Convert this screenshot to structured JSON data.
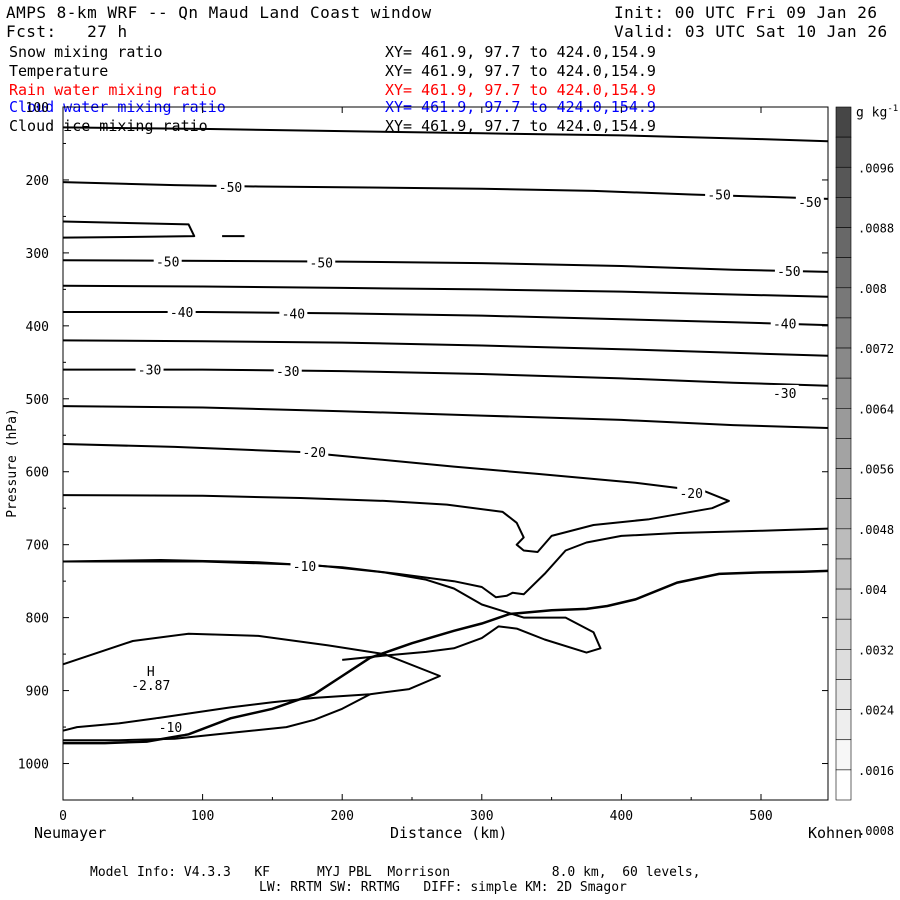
{
  "header": {
    "title": "AMPS 8-km WRF -- Qn Maud Land Coast window",
    "init": "Init: 00 UTC Fri 09 Jan 26",
    "fcst": "Fcst:   27 h",
    "valid": "Valid: 03 UTC Sat 10 Jan 26"
  },
  "legend": [
    {
      "name": "Snow mixing ratio",
      "xy": "XY= 461.9, 97.7 to 424.0,154.9",
      "color": "#000000"
    },
    {
      "name": "Temperature",
      "xy": "XY= 461.9, 97.7 to 424.0,154.9",
      "color": "#000000"
    },
    {
      "name": "Rain water mixing ratio",
      "xy": "XY= 461.9, 97.7 to 424.0,154.9",
      "color": "#ff0000"
    },
    {
      "name": "Cloud water mixing ratio",
      "xy": "XY= 461.9, 97.7 to 424.0,154.9",
      "color": "#0000ff"
    },
    {
      "name": "Cloud ice mixing ratio",
      "xy": "XY= 461.9, 97.7 to 424.0,154.9",
      "color": "#000000"
    }
  ],
  "footer": {
    "line1": "Model Info: V4.3.3   KF      MYJ PBL  Morrison             8.0 km,  60 levels,",
    "line2": "LW: RRTM SW: RRTMG   DIFF: simple KM: 2D Smagor"
  },
  "chart_data": {
    "type": "contour",
    "title": "AMPS 8-km WRF -- Qn Maud Land Coast window",
    "xlabel": "Distance (km)",
    "ylabel": "Pressure (hPa)",
    "xlim": [
      0,
      548
    ],
    "ylim": [
      1050,
      100
    ],
    "x_ticks": [
      0,
      100,
      200,
      300,
      400,
      500
    ],
    "y_ticks": [
      100,
      200,
      300,
      400,
      500,
      600,
      700,
      800,
      900,
      1000
    ],
    "x_endpoints": {
      "left": "Neumayer",
      "right": "Kohnen"
    },
    "colorbar": {
      "unit_base": "g kg",
      "unit_exp": "-1",
      "ticks": [
        ".0096",
        ".0088",
        ".008",
        ".0072",
        ".0064",
        ".0056",
        ".0048",
        ".004",
        ".0032",
        ".0024",
        ".0016",
        ".0008"
      ],
      "levels": 23
    },
    "temperature_contours": [
      {
        "points": [
          [
            0,
            128
          ],
          [
            100,
            130
          ],
          [
            200,
            133
          ],
          [
            300,
            136
          ],
          [
            400,
            139
          ],
          [
            500,
            144
          ],
          [
            548,
            147
          ]
        ]
      },
      {
        "points": [
          [
            0,
            203
          ],
          [
            80,
            207
          ],
          [
            140,
            209
          ],
          [
            200,
            210
          ],
          [
            300,
            212
          ],
          [
            380,
            215
          ],
          [
            450,
            220
          ],
          [
            520,
            224
          ],
          [
            548,
            226
          ]
        ]
      },
      {
        "points": [
          [
            0,
            257
          ],
          [
            90,
            261
          ],
          [
            94,
            277
          ],
          [
            60,
            278
          ],
          [
            0,
            279
          ]
        ]
      },
      {
        "points": [
          [
            114,
            277
          ],
          [
            130,
            277
          ]
        ]
      },
      {
        "points": [
          [
            0,
            310
          ],
          [
            100,
            311
          ],
          [
            200,
            312
          ],
          [
            300,
            314
          ],
          [
            400,
            318
          ],
          [
            480,
            323
          ],
          [
            548,
            326
          ]
        ]
      },
      {
        "points": [
          [
            0,
            345
          ],
          [
            100,
            346
          ],
          [
            200,
            348
          ],
          [
            300,
            350
          ],
          [
            400,
            353
          ],
          [
            480,
            357
          ],
          [
            548,
            360
          ]
        ]
      },
      {
        "points": [
          [
            0,
            381
          ],
          [
            100,
            381
          ],
          [
            200,
            383
          ],
          [
            300,
            386
          ],
          [
            400,
            391
          ],
          [
            480,
            395
          ],
          [
            548,
            399
          ]
        ]
      },
      {
        "points": [
          [
            0,
            420
          ],
          [
            100,
            421
          ],
          [
            200,
            423
          ],
          [
            300,
            427
          ],
          [
            400,
            432
          ],
          [
            480,
            437
          ],
          [
            548,
            441
          ]
        ]
      },
      {
        "points": [
          [
            0,
            460
          ],
          [
            100,
            460
          ],
          [
            200,
            462
          ],
          [
            300,
            466
          ],
          [
            400,
            472
          ],
          [
            480,
            478
          ],
          [
            548,
            482
          ]
        ]
      },
      {
        "points": [
          [
            0,
            510
          ],
          [
            100,
            512
          ],
          [
            200,
            517
          ],
          [
            300,
            523
          ],
          [
            400,
            529
          ],
          [
            480,
            536
          ],
          [
            548,
            540
          ]
        ]
      },
      {
        "points": [
          [
            0,
            562
          ],
          [
            80,
            566
          ],
          [
            170,
            573
          ],
          [
            220,
            582
          ],
          [
            280,
            593
          ],
          [
            340,
            603
          ],
          [
            410,
            615
          ],
          [
            460,
            627
          ],
          [
            477,
            640
          ],
          [
            465,
            650
          ],
          [
            420,
            665
          ],
          [
            380,
            673
          ],
          [
            350,
            688
          ],
          [
            340,
            710
          ],
          [
            330,
            708
          ],
          [
            325,
            700
          ],
          [
            330,
            690
          ],
          [
            325,
            670
          ],
          [
            315,
            655
          ],
          [
            275,
            645
          ],
          [
            230,
            640
          ],
          [
            170,
            636
          ],
          [
            100,
            633
          ],
          [
            0,
            632
          ]
        ]
      },
      {
        "points": [
          [
            0,
            723
          ],
          [
            70,
            721
          ],
          [
            140,
            724
          ],
          [
            200,
            731
          ],
          [
            240,
            740
          ],
          [
            280,
            750
          ],
          [
            300,
            758
          ],
          [
            310,
            772
          ],
          [
            318,
            770
          ],
          [
            322,
            766
          ],
          [
            330,
            768
          ],
          [
            345,
            740
          ],
          [
            360,
            708
          ],
          [
            375,
            697
          ],
          [
            400,
            688
          ],
          [
            440,
            684
          ],
          [
            500,
            681
          ],
          [
            548,
            678
          ]
        ]
      },
      {
        "points": [
          [
            0,
            723
          ],
          [
            100,
            723
          ],
          [
            180,
            728
          ],
          [
            230,
            738
          ],
          [
            260,
            748
          ],
          [
            280,
            760
          ],
          [
            300,
            782
          ],
          [
            330,
            800
          ],
          [
            360,
            800
          ],
          [
            380,
            820
          ],
          [
            385,
            842
          ],
          [
            375,
            848
          ],
          [
            345,
            830
          ],
          [
            325,
            815
          ],
          [
            312,
            812
          ],
          [
            300,
            828
          ],
          [
            280,
            842
          ],
          [
            260,
            847
          ],
          [
            230,
            852
          ],
          [
            200,
            858
          ]
        ]
      },
      {
        "points": [
          [
            0,
            864
          ],
          [
            50,
            832
          ],
          [
            90,
            822
          ],
          [
            140,
            825
          ],
          [
            190,
            838
          ],
          [
            230,
            850
          ],
          [
            270,
            880
          ],
          [
            248,
            898
          ],
          [
            220,
            905
          ],
          [
            180,
            910
          ],
          [
            150,
            916
          ],
          [
            120,
            923
          ],
          [
            95,
            930
          ],
          [
            70,
            937
          ],
          [
            40,
            945
          ],
          [
            10,
            950
          ],
          [
            0,
            955
          ]
        ]
      },
      {
        "points": [
          [
            0,
            968
          ],
          [
            40,
            968
          ],
          [
            80,
            966
          ],
          [
            120,
            958
          ],
          [
            160,
            950
          ],
          [
            180,
            940
          ],
          [
            200,
            925
          ],
          [
            220,
            905
          ]
        ]
      }
    ],
    "terrain": {
      "points": [
        [
          0,
          972
        ],
        [
          30,
          972
        ],
        [
          60,
          970
        ],
        [
          90,
          960
        ],
        [
          120,
          938
        ],
        [
          150,
          925
        ],
        [
          180,
          905
        ],
        [
          200,
          880
        ],
        [
          220,
          855
        ],
        [
          250,
          835
        ],
        [
          280,
          818
        ],
        [
          300,
          808
        ],
        [
          320,
          795
        ],
        [
          350,
          790
        ],
        [
          375,
          788
        ],
        [
          390,
          784
        ],
        [
          410,
          775
        ],
        [
          440,
          752
        ],
        [
          470,
          740
        ],
        [
          500,
          738
        ],
        [
          530,
          737
        ],
        [
          548,
          736
        ]
      ]
    },
    "temperature_labels": [
      {
        "label": "-50",
        "x": 120,
        "p": 210
      },
      {
        "label": "-50",
        "x": 470,
        "p": 220
      },
      {
        "label": "-50",
        "x": 535,
        "p": 230
      },
      {
        "label": "-50",
        "x": 75,
        "p": 312
      },
      {
        "label": "-50",
        "x": 185,
        "p": 313
      },
      {
        "label": "-50",
        "x": 520,
        "p": 325
      },
      {
        "label": "-40",
        "x": 85,
        "p": 381
      },
      {
        "label": "-40",
        "x": 165,
        "p": 383
      },
      {
        "label": "-40",
        "x": 517,
        "p": 397
      },
      {
        "label": "-30",
        "x": 62,
        "p": 460
      },
      {
        "label": "-30",
        "x": 161,
        "p": 462
      },
      {
        "label": "-30",
        "x": 517,
        "p": 492
      },
      {
        "label": "-20",
        "x": 180,
        "p": 573
      },
      {
        "label": "-20",
        "x": 450,
        "p": 629
      },
      {
        "label": "-10",
        "x": 173,
        "p": 729
      },
      {
        "label": "-10",
        "x": 77,
        "p": 950
      }
    ],
    "extrema": [
      {
        "label": "H",
        "value": "-2.87",
        "x": 60,
        "p": 888
      }
    ]
  }
}
